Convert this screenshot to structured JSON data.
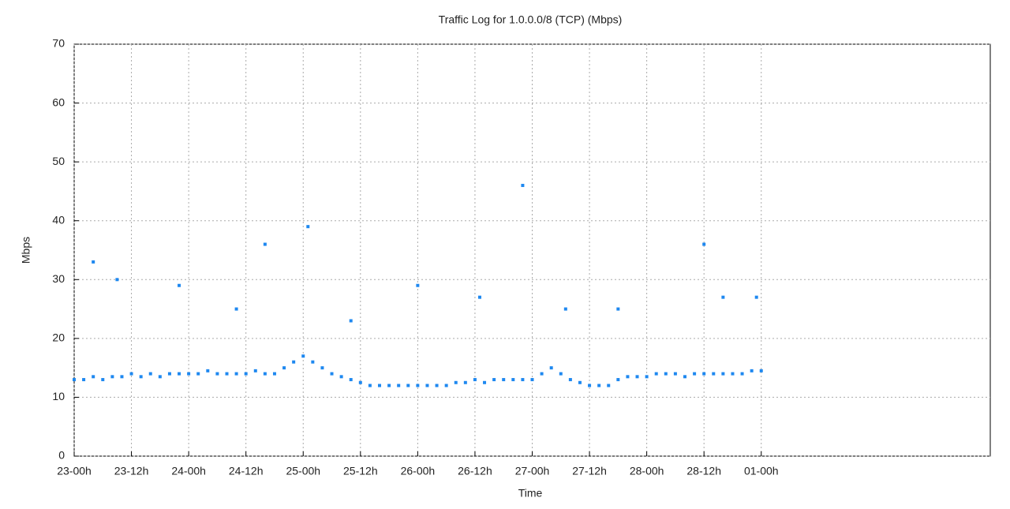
{
  "chart_data": {
    "type": "scatter",
    "title": "Traffic Log for 1.0.0.0/8 (TCP) (Mbps)",
    "x_label": "Time",
    "y_label": "Mbps",
    "color": "#1e88f0",
    "grid": true,
    "xlim": [
      0,
      192
    ],
    "ylim": [
      0,
      70
    ],
    "xticks": [
      {
        "value": 0,
        "label": "23-00h"
      },
      {
        "value": 12,
        "label": "23-12h"
      },
      {
        "value": 24,
        "label": "24-00h"
      },
      {
        "value": 36,
        "label": "24-12h"
      },
      {
        "value": 48,
        "label": "25-00h"
      },
      {
        "value": 60,
        "label": "25-12h"
      },
      {
        "value": 72,
        "label": "26-00h"
      },
      {
        "value": 84,
        "label": "26-12h"
      },
      {
        "value": 96,
        "label": "27-00h"
      },
      {
        "value": 108,
        "label": "27-12h"
      },
      {
        "value": 120,
        "label": "28-00h"
      },
      {
        "value": 132,
        "label": "28-12h"
      },
      {
        "value": 144,
        "label": "01-00h"
      }
    ],
    "yticks": [
      0,
      10,
      20,
      30,
      40,
      50,
      60,
      70
    ],
    "x": [
      0,
      2,
      4,
      6,
      8,
      10,
      12,
      14,
      16,
      18,
      20,
      22,
      24,
      26,
      28,
      30,
      32,
      34,
      36,
      38,
      40,
      42,
      44,
      46,
      48,
      50,
      52,
      54,
      56,
      58,
      60,
      62,
      64,
      66,
      68,
      70,
      72,
      74,
      76,
      78,
      80,
      82,
      84,
      86,
      88,
      90,
      92,
      94,
      96,
      98,
      100,
      102,
      104,
      106,
      108,
      110,
      112,
      114,
      116,
      118,
      120,
      122,
      124,
      126,
      128,
      130,
      132,
      134,
      136,
      138,
      140,
      142,
      144,
      4,
      9,
      22,
      34,
      40,
      49,
      58,
      72,
      85,
      94,
      103,
      114,
      132,
      136,
      143
    ],
    "values": [
      13,
      13,
      13.5,
      13,
      13.5,
      13.5,
      14,
      13.5,
      14,
      13.5,
      14,
      14,
      14,
      14,
      14.5,
      14,
      14,
      14,
      14,
      14.5,
      14,
      14,
      15,
      16,
      17,
      16,
      15,
      14,
      13.5,
      13,
      12.5,
      12,
      12,
      12,
      12,
      12,
      12,
      12,
      12,
      12,
      12.5,
      12.5,
      13,
      12.5,
      13,
      13,
      13,
      13,
      13,
      14,
      15,
      14,
      13,
      12.5,
      12,
      12,
      12,
      13,
      13.5,
      13.5,
      13.5,
      14,
      14,
      14,
      13.5,
      14,
      14,
      14,
      14,
      14,
      14,
      14.5,
      14.5,
      33,
      30,
      29,
      25,
      36,
      39,
      23,
      29,
      27,
      46,
      25,
      25,
      36,
      27,
      27
    ]
  }
}
